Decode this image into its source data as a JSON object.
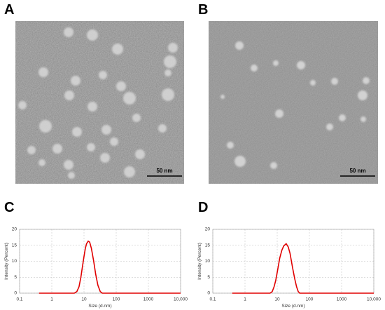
{
  "panel_labels": [
    "A",
    "B",
    "C",
    "D"
  ],
  "images": [
    {
      "scale_bar": "50 nm"
    },
    {
      "scale_bar": "50 nm"
    }
  ],
  "chart_data": [
    {
      "type": "line",
      "xlabel": "Size (d.nm)",
      "ylabel": "Intensity (Percent)",
      "xscale": "log",
      "grid": true,
      "xlim": [
        0.1,
        10000
      ],
      "xticks": [
        0.1,
        1,
        10,
        100,
        1000,
        {
          "value": 10000,
          "label": "10,000"
        }
      ],
      "ylim": [
        0,
        20
      ],
      "yticks": [
        0,
        5,
        10,
        15,
        20
      ],
      "x": [
        0.4,
        5,
        6,
        7,
        8,
        9,
        10,
        11,
        12,
        13.5,
        15,
        17,
        20,
        23,
        27,
        32,
        37,
        10000
      ],
      "series": [
        {
          "color": "#e00000",
          "values": [
            0,
            0,
            0.5,
            2,
            5,
            8.5,
            11.5,
            14,
            15.5,
            16.3,
            16,
            14,
            10,
            6,
            2.5,
            0.5,
            0,
            0
          ]
        }
      ]
    },
    {
      "type": "line",
      "xlabel": "Size (d.nm)",
      "ylabel": "Intensity (Percent)",
      "xscale": "log",
      "grid": true,
      "xlim": [
        0.1,
        10000
      ],
      "xticks": [
        0.1,
        1,
        10,
        100,
        1000,
        {
          "value": 10000,
          "label": "10,000"
        }
      ],
      "ylim": [
        0,
        20
      ],
      "yticks": [
        0,
        5,
        10,
        15,
        20
      ],
      "x": [
        0.4,
        6,
        7,
        8,
        9,
        10,
        12,
        14,
        16,
        19,
        22,
        25,
        30,
        35,
        40,
        45,
        50,
        10000
      ],
      "series": [
        {
          "color": "#e00000",
          "values": [
            0,
            0,
            0.5,
            2,
            4,
            6.5,
            11,
            13.5,
            14.8,
            15.5,
            14.5,
            12.5,
            8,
            4.5,
            2,
            0.5,
            0,
            0
          ]
        }
      ]
    }
  ]
}
